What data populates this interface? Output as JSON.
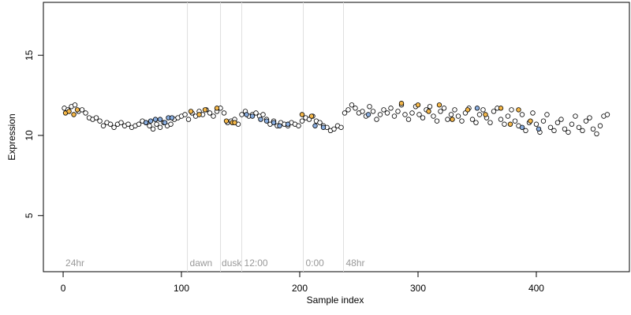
{
  "chart_data": {
    "type": "scatter",
    "x_label": "Sample index",
    "y_label": "Expression",
    "xlim": [
      -16.7,
      478.7
    ],
    "ylim": [
      1.5,
      18.3
    ],
    "xticks": [
      0,
      100,
      200,
      300,
      400
    ],
    "yticks": [
      5,
      10,
      15
    ],
    "vlines": [
      105,
      133,
      151,
      203,
      237
    ],
    "annotations": [
      {
        "label": "24hr",
        "x": 2,
        "y": 2
      },
      {
        "label": "dawn",
        "x": 107,
        "y": 2
      },
      {
        "label": "dusk",
        "x": 134,
        "y": 2
      },
      {
        "label": "12:00",
        "x": 153,
        "y": 2
      },
      {
        "label": "0:00",
        "x": 205,
        "y": 2
      },
      {
        "label": "48hr",
        "x": 239,
        "y": 2
      }
    ],
    "series": [
      {
        "color": "#ffffff",
        "x": [
          1,
          4,
          7,
          10,
          13,
          16,
          19,
          22,
          25,
          28,
          31,
          34,
          37,
          40,
          43,
          46,
          49,
          52,
          55,
          58,
          61,
          64,
          67,
          70,
          73,
          76,
          79,
          82,
          85,
          88,
          91,
          94,
          97,
          100,
          103,
          106,
          109,
          112,
          115,
          118,
          121,
          124,
          127,
          130,
          133,
          136,
          139,
          142,
          145,
          148,
          151,
          154,
          157,
          160,
          163,
          166,
          169,
          172,
          175,
          178,
          181,
          184,
          187,
          190,
          193,
          196,
          199,
          202,
          205,
          208,
          211,
          214,
          217,
          220,
          223,
          226,
          229,
          232,
          235,
          238,
          241,
          244,
          247,
          250,
          253,
          256,
          259,
          262,
          265,
          268,
          271,
          274,
          277,
          280,
          283,
          286,
          289,
          292,
          295,
          298,
          301,
          304,
          307,
          310,
          313,
          316,
          319,
          322,
          325,
          328,
          331,
          334,
          337,
          340,
          343,
          346,
          349,
          352,
          355,
          358,
          361,
          364,
          367,
          370,
          373,
          376,
          379,
          382,
          385,
          388,
          391,
          394,
          397,
          400,
          403,
          406,
          409,
          412,
          415,
          418,
          421,
          424,
          427,
          430,
          433,
          436,
          439,
          442,
          445,
          448,
          451,
          454,
          457,
          460
        ],
        "values": [
          11.7,
          11.6,
          11.8,
          11.9,
          11.5,
          11.6,
          11.4,
          11.1,
          11.0,
          11.1,
          10.9,
          10.6,
          10.8,
          10.7,
          10.5,
          10.7,
          10.8,
          10.6,
          10.7,
          10.5,
          10.6,
          10.7,
          10.9,
          10.8,
          10.6,
          10.4,
          10.7,
          10.5,
          10.8,
          10.6,
          10.7,
          11.0,
          11.1,
          11.2,
          11.3,
          11.0,
          11.4,
          11.2,
          11.5,
          11.3,
          11.6,
          11.4,
          11.2,
          11.5,
          11.7,
          11.4,
          10.8,
          10.9,
          11.0,
          10.7,
          11.3,
          11.5,
          11.2,
          11.3,
          11.4,
          11.2,
          11.3,
          11.0,
          10.7,
          10.9,
          10.6,
          10.8,
          10.7,
          10.6,
          10.8,
          10.7,
          10.6,
          10.9,
          11.1,
          11.0,
          11.2,
          10.9,
          10.8,
          10.6,
          10.5,
          10.3,
          10.4,
          10.6,
          10.5,
          11.4,
          11.6,
          11.9,
          11.7,
          11.4,
          11.5,
          11.2,
          11.8,
          11.5,
          11.0,
          11.3,
          11.6,
          11.4,
          11.7,
          11.2,
          11.5,
          11.9,
          11.3,
          11.0,
          11.4,
          11.8,
          11.3,
          11.1,
          11.6,
          11.8,
          11.2,
          10.9,
          11.5,
          11.7,
          11.0,
          11.3,
          11.6,
          11.2,
          10.9,
          11.4,
          11.7,
          11.0,
          10.8,
          11.3,
          11.6,
          11.1,
          10.8,
          11.5,
          11.7,
          11.0,
          10.7,
          11.2,
          11.6,
          10.9,
          10.6,
          11.3,
          10.3,
          10.8,
          11.4,
          10.7,
          10.2,
          10.9,
          11.3,
          10.5,
          10.3,
          10.8,
          11.0,
          10.4,
          10.2,
          10.7,
          11.2,
          10.5,
          10.3,
          10.9,
          11.1,
          10.4,
          10.1,
          10.6,
          11.2,
          11.3
        ]
      },
      {
        "color": "#f5b84a",
        "x": [
          2,
          5,
          9,
          12,
          108,
          115,
          120,
          130,
          138,
          143,
          145,
          202,
          210,
          286,
          300,
          309,
          318,
          329,
          342,
          357,
          370,
          378,
          385,
          395
        ],
        "values": [
          11.4,
          11.5,
          11.3,
          11.6,
          11.5,
          11.3,
          11.6,
          11.7,
          10.9,
          10.8,
          10.8,
          11.3,
          11.2,
          12.0,
          11.9,
          11.5,
          11.9,
          11.0,
          11.6,
          11.3,
          11.7,
          10.7,
          11.6,
          10.9
        ]
      },
      {
        "color": "#8aaee0",
        "x": [
          70,
          74,
          78,
          82,
          86,
          89,
          92,
          155,
          160,
          167,
          172,
          178,
          183,
          190,
          213,
          220,
          258,
          350,
          388,
          402
        ],
        "values": [
          10.8,
          10.9,
          11.0,
          11.0,
          10.8,
          11.1,
          11.1,
          11.3,
          11.2,
          11.0,
          10.9,
          10.8,
          10.6,
          10.7,
          10.6,
          10.5,
          11.3,
          11.7,
          10.5,
          10.4
        ]
      }
    ]
  }
}
